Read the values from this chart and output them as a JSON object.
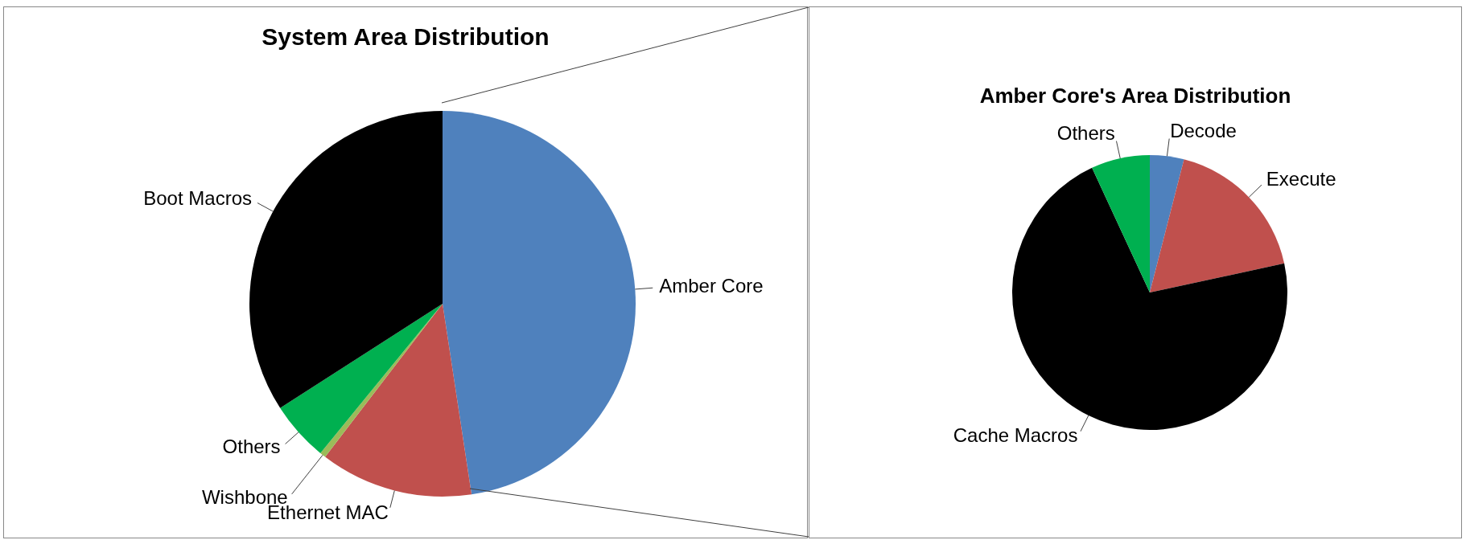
{
  "chart_data": [
    {
      "type": "pie",
      "title": "System Area Distribution",
      "categories": [
        "Amber Core",
        "Ethernet MAC",
        "Wishbone",
        "Others",
        "Boot Macros"
      ],
      "values": [
        47.6,
        12.8,
        0.5,
        5,
        34.1
      ],
      "colors": [
        "#4f81bd",
        "#c0504d",
        "#9bbb59",
        "#00b050",
        "#000000"
      ]
    },
    {
      "type": "pie",
      "title": "Amber Core's Area Distribution",
      "categories": [
        "Decode",
        "Execute",
        "Cache Macros",
        "Others"
      ],
      "values": [
        4,
        17.6,
        71.5,
        6.9
      ],
      "colors": [
        "#4f81bd",
        "#c0504d",
        "#000000",
        "#00b050"
      ]
    }
  ]
}
